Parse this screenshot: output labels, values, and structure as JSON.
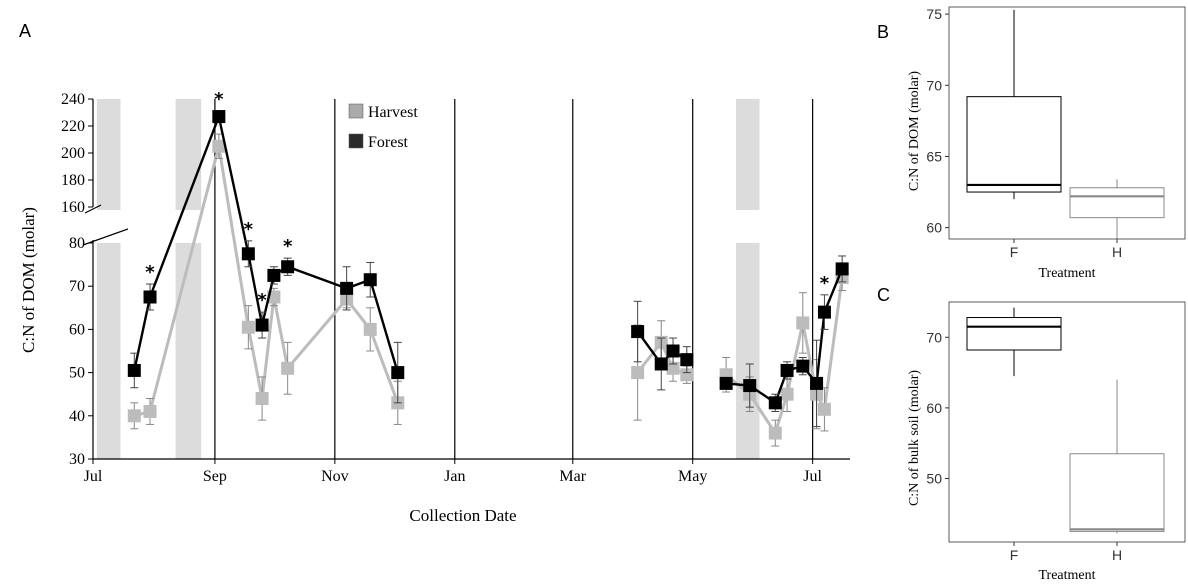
{
  "panel_labels": {
    "a": "A",
    "b": "B",
    "c": "C"
  },
  "legend": [
    {
      "name": "Harvest",
      "color": "#aaaaaa"
    },
    {
      "name": "Forest",
      "color": "#2b2b2b"
    }
  ],
  "colors": {
    "harvest": "#bcbcbc",
    "forest": "#000000",
    "shade": "#dcdcdc",
    "box_f": "#000000",
    "box_h": "#888888"
  },
  "chart_data": [
    {
      "type": "line",
      "panel": "A",
      "xlabel": "Collection Date",
      "ylabel": "C:N of DOM (molar)",
      "x_ticks": [
        "Jul",
        "Sep",
        "Nov",
        "Jan",
        "Mar",
        "May",
        "Jul"
      ],
      "x_range": [
        "2011-07-01",
        "2012-07-20"
      ],
      "y_axis_broken": true,
      "y_lower_range": [
        30,
        80
      ],
      "y_lower_ticks": [
        "30",
        "40",
        "50",
        "60",
        "70",
        "80"
      ],
      "y_upper_range": [
        160,
        240
      ],
      "y_upper_ticks": [
        "160",
        "180",
        "200",
        "220",
        "240"
      ],
      "monthly_vlines": [
        "2011-09-01",
        "2011-11-01",
        "2012-01-01",
        "2012-03-01",
        "2012-05-01",
        "2012-07-01"
      ],
      "shaded_periods": [
        [
          "2011-07-03",
          "2011-07-15"
        ],
        [
          "2011-08-12",
          "2011-08-25"
        ],
        [
          "2012-05-23",
          "2012-06-04"
        ]
      ],
      "series": [
        {
          "name": "Forest",
          "segments": [
            [
              {
                "x": "2011-07-22",
                "y": 50.5,
                "err": 4
              },
              {
                "x": "2011-07-30",
                "y": 67.5,
                "err": 3
              },
              {
                "x": "2011-09-03",
                "y": 227,
                "err": 4
              },
              {
                "x": "2011-09-18",
                "y": 77.5,
                "err": 3
              },
              {
                "x": "2011-09-25",
                "y": 61,
                "err": 3
              },
              {
                "x": "2011-10-01",
                "y": 72.5,
                "err": 2
              },
              {
                "x": "2011-10-08",
                "y": 74.5,
                "err": 2
              },
              {
                "x": "2011-11-07",
                "y": 69.5,
                "err": 5
              },
              {
                "x": "2011-11-19",
                "y": 71.5,
                "err": 4
              },
              {
                "x": "2011-12-03",
                "y": 50,
                "err": 7
              }
            ],
            [
              {
                "x": "2012-04-03",
                "y": 59.5,
                "err": 7
              },
              {
                "x": "2012-04-15",
                "y": 52,
                "err": 6
              },
              {
                "x": "2012-04-21",
                "y": 55,
                "err": 3
              },
              {
                "x": "2012-04-28",
                "y": 53,
                "err": 3
              }
            ],
            [
              {
                "x": "2012-05-18",
                "y": 47.5,
                "err": 0
              },
              {
                "x": "2012-05-30",
                "y": 47,
                "err": 5
              },
              {
                "x": "2012-06-12",
                "y": 43,
                "err": 2
              },
              {
                "x": "2012-06-18",
                "y": 50.5,
                "err": 2
              },
              {
                "x": "2012-06-26",
                "y": 51.5,
                "err": 2
              },
              {
                "x": "2012-07-03",
                "y": 47.5,
                "err": 10
              },
              {
                "x": "2012-07-07",
                "y": 64,
                "err": 4
              },
              {
                "x": "2012-07-16",
                "y": 74,
                "err": 3
              }
            ]
          ],
          "significant": [
            "2011-07-30",
            "2011-09-03",
            "2011-09-18",
            "2011-09-25",
            "2011-10-08",
            "2012-07-07"
          ]
        },
        {
          "name": "Harvest",
          "segments": [
            [
              {
                "x": "2011-07-22",
                "y": 40,
                "err": 3
              },
              {
                "x": "2011-07-30",
                "y": 41,
                "err": 3
              },
              {
                "x": "2011-09-03",
                "y": 205,
                "err": 9
              },
              {
                "x": "2011-09-18",
                "y": 60.5,
                "err": 5
              },
              {
                "x": "2011-09-25",
                "y": 44,
                "err": 5
              },
              {
                "x": "2011-10-01",
                "y": 67.5,
                "err": 2
              },
              {
                "x": "2011-10-08",
                "y": 51,
                "err": 6
              },
              {
                "x": "2011-11-07",
                "y": 67,
                "err": 2
              },
              {
                "x": "2011-11-19",
                "y": 60,
                "err": 5
              },
              {
                "x": "2011-12-03",
                "y": 43,
                "err": 5
              }
            ],
            [
              {
                "x": "2012-04-03",
                "y": 50,
                "err": 11
              },
              {
                "x": "2012-04-15",
                "y": 57,
                "err": 5
              },
              {
                "x": "2012-04-21",
                "y": 51,
                "err": 3
              },
              {
                "x": "2012-04-28",
                "y": 49.5,
                "err": 2
              }
            ],
            [
              {
                "x": "2012-05-18",
                "y": 49.5,
                "err": 4
              },
              {
                "x": "2012-05-30",
                "y": 45,
                "err": 4
              },
              {
                "x": "2012-06-12",
                "y": 36,
                "err": 3
              },
              {
                "x": "2012-06-18",
                "y": 45,
                "err": 4
              },
              {
                "x": "2012-06-26",
                "y": 61.5,
                "err": 7
              },
              {
                "x": "2012-07-03",
                "y": 45,
                "err": 8
              },
              {
                "x": "2012-07-07",
                "y": 41.5,
                "err": 5
              },
              {
                "x": "2012-07-16",
                "y": 72,
                "err": 3
              }
            ]
          ]
        }
      ]
    },
    {
      "type": "box",
      "panel": "B",
      "xlabel": "Treatment",
      "ylabel": "C:N of DOM (molar)",
      "ylim": [
        59.2,
        75.5
      ],
      "y_ticks": [
        60,
        65,
        70,
        75
      ],
      "categories": [
        "F",
        "H"
      ],
      "boxes": [
        {
          "name": "F",
          "min": 62,
          "q1": 62.5,
          "median": 63,
          "q3": 69.2,
          "max": 75.3
        },
        {
          "name": "H",
          "min": 59.2,
          "q1": 60.7,
          "median": 62.2,
          "q3": 62.8,
          "max": 63.4
        }
      ]
    },
    {
      "type": "box",
      "panel": "C",
      "xlabel": "Treatment",
      "ylabel": "C:N of bulk soil (molar)",
      "ylim": [
        41,
        75
      ],
      "y_ticks": [
        50,
        60,
        70
      ],
      "categories": [
        "F",
        "H"
      ],
      "boxes": [
        {
          "name": "F",
          "min": 64.5,
          "q1": 68.2,
          "median": 71.5,
          "q3": 72.8,
          "max": 74.2
        },
        {
          "name": "H",
          "min": 42.2,
          "q1": 42.5,
          "median": 42.8,
          "q3": 53.5,
          "max": 64
        }
      ]
    }
  ]
}
